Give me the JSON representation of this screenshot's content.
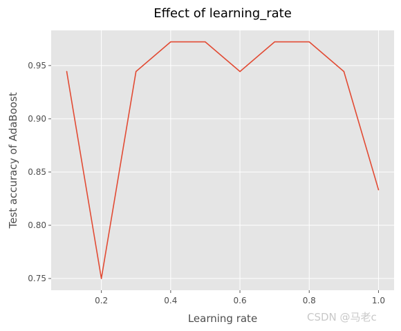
{
  "chart_data": {
    "type": "line",
    "title": "Effect of learning_rate",
    "xlabel": "Learning rate",
    "ylabel": "Test accuracy of AdaBoost",
    "x": [
      0.1,
      0.2,
      0.3,
      0.4,
      0.5,
      0.6,
      0.7,
      0.8,
      0.9,
      1.0
    ],
    "series": [
      {
        "values": [
          0.9444,
          0.75,
          0.9444,
          0.9722,
          0.9722,
          0.9444,
          0.9722,
          0.9722,
          0.9444,
          0.8333
        ]
      }
    ],
    "xticks": [
      "0.2",
      "0.4",
      "0.6",
      "0.8",
      "1.0"
    ],
    "yticks": [
      "0.75",
      "0.80",
      "0.85",
      "0.90",
      "0.95"
    ],
    "xlim": [
      0.055,
      1.045
    ],
    "ylim": [
      0.739,
      0.983
    ],
    "grid": true,
    "style": "ggplot",
    "colors": {
      "line": "#e24a33",
      "background": "#e5e5e5",
      "grid": "#ffffff"
    }
  },
  "watermark": "CSDN @马老c"
}
